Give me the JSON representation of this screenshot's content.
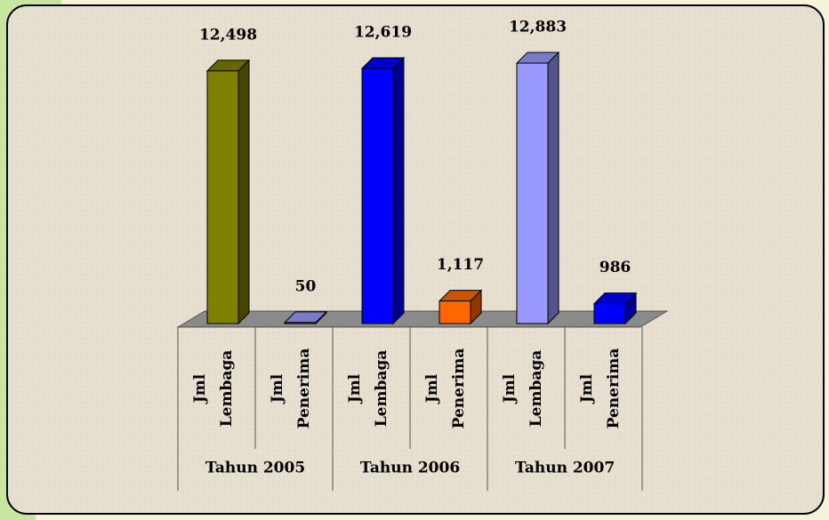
{
  "chart_data": {
    "type": "bar3d",
    "categories": [
      [
        "Jml",
        "Lembaga"
      ],
      [
        "Jml",
        "Penerima"
      ],
      [
        "Jml",
        "Lembaga"
      ],
      [
        "Jml",
        "Penerima"
      ],
      [
        "Jml",
        "Lembaga"
      ],
      [
        "Jml",
        "Penerima"
      ]
    ],
    "groups": [
      "Tahun 2005",
      "Tahun 2006",
      "Tahun 2007"
    ],
    "values": [
      12498,
      50,
      12619,
      1117,
      12883,
      986
    ],
    "value_labels": [
      "12,498",
      "50",
      "12,619",
      "1,117",
      "12,883",
      "986"
    ],
    "colors": [
      "#808000",
      "#9999ff",
      "#0000ff",
      "#ff6600",
      "#9999ff",
      "#0000ff"
    ]
  }
}
